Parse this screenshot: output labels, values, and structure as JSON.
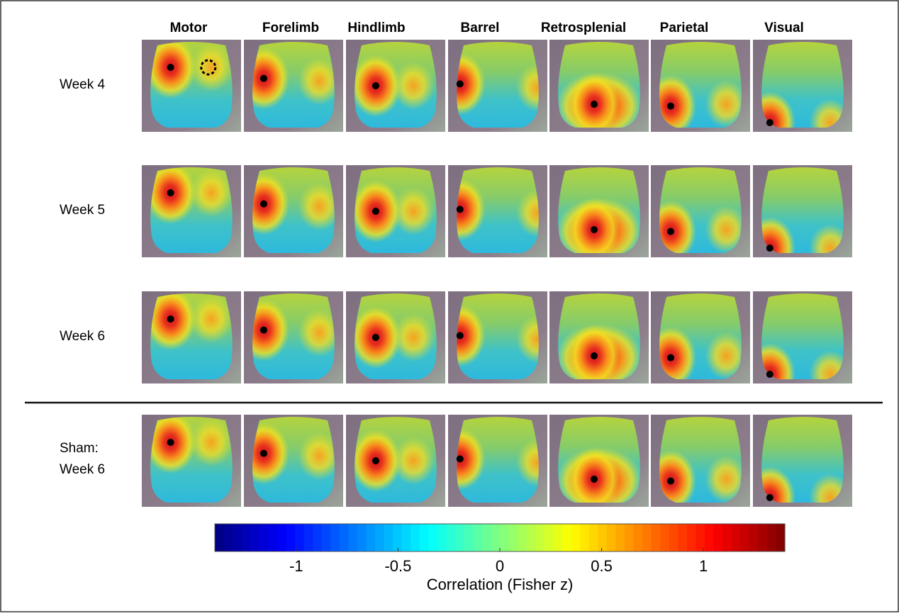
{
  "columns": [
    "Motor",
    "Forelimb",
    "Hindlimb",
    "Barrel",
    "Retrosplenial",
    "Parietal",
    "Visual"
  ],
  "rows": [
    [
      "Week 4"
    ],
    [
      "Week 5"
    ],
    [
      "Week 6"
    ],
    [
      "Sham:",
      "Week 6"
    ]
  ],
  "colorbar": {
    "label": "Correlation (Fisher z)",
    "lim": [
      -1.4,
      1.4
    ],
    "ticks": [
      -1,
      -0.5,
      0,
      0.5,
      1
    ]
  }
}
